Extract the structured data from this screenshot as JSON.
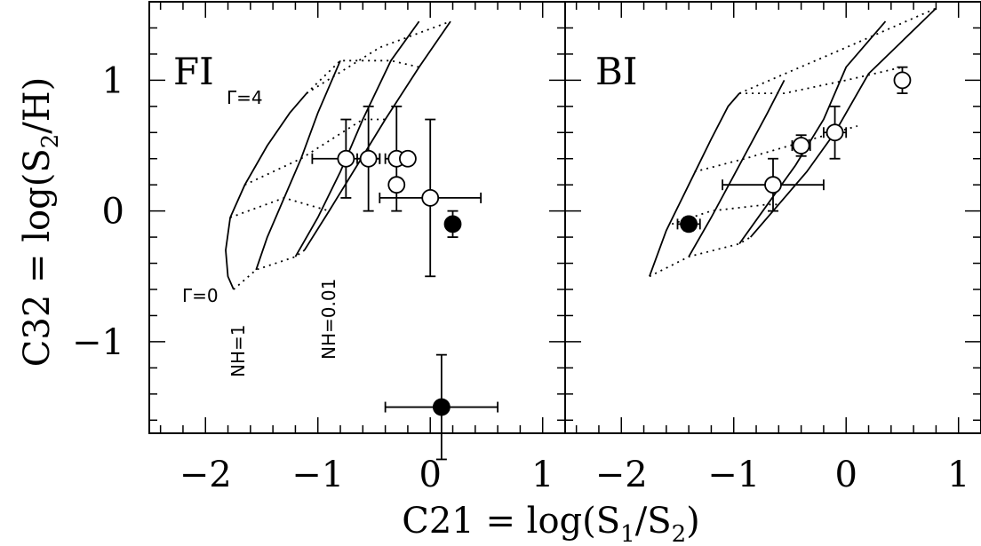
{
  "chart_data": [
    {
      "type": "scatter",
      "panel_label": "FI",
      "xlim": [
        -2.5,
        1.2
      ],
      "ylim": [
        -1.7,
        1.6
      ],
      "x_ticks": [
        -2,
        -1,
        0,
        1
      ],
      "y_ticks": [
        -1,
        0,
        1
      ],
      "xlabel": "C21 = log(S1/S2)",
      "ylabel": "C32 = log(S2/H)",
      "annotations": {
        "gamma_top": "Γ=4",
        "gamma_bottom": "Γ=0",
        "nh_left": "NH=1",
        "nh_right": "NH=0.01"
      },
      "model_grid": {
        "nh_curves": [
          [
            [
              -1.75,
              -0.6
            ],
            [
              -1.8,
              -0.5
            ],
            [
              -1.82,
              -0.3
            ],
            [
              -1.78,
              -0.05
            ],
            [
              -1.65,
              0.2
            ],
            [
              -1.45,
              0.5
            ],
            [
              -1.25,
              0.75
            ],
            [
              -1.1,
              0.9
            ]
          ],
          [
            [
              -1.55,
              -0.45
            ],
            [
              -1.45,
              -0.2
            ],
            [
              -1.3,
              0.1
            ],
            [
              -1.15,
              0.4
            ],
            [
              -1.0,
              0.75
            ],
            [
              -0.8,
              1.15
            ]
          ],
          [
            [
              -1.2,
              -0.35
            ],
            [
              -1.0,
              -0.05
            ],
            [
              -0.8,
              0.3
            ],
            [
              -0.6,
              0.7
            ],
            [
              -0.35,
              1.15
            ],
            [
              -0.1,
              1.45
            ]
          ],
          [
            [
              -1.12,
              -0.3
            ],
            [
              -0.9,
              0.0
            ],
            [
              -0.65,
              0.35
            ],
            [
              -0.4,
              0.7
            ],
            [
              -0.1,
              1.1
            ],
            [
              0.18,
              1.45
            ]
          ]
        ],
        "gamma_curves": [
          [
            [
              -1.75,
              -0.6
            ],
            [
              -1.55,
              -0.45
            ],
            [
              -1.2,
              -0.35
            ],
            [
              -1.12,
              -0.3
            ]
          ],
          [
            [
              -1.78,
              -0.05
            ],
            [
              -1.3,
              0.1
            ],
            [
              -0.9,
              0.0
            ]
          ],
          [
            [
              -1.65,
              0.2
            ],
            [
              -1.15,
              0.4
            ],
            [
              -0.6,
              0.7
            ],
            [
              -0.4,
              0.7
            ]
          ],
          [
            [
              -1.1,
              0.9
            ],
            [
              -0.8,
              1.15
            ],
            [
              -0.35,
              1.15
            ],
            [
              -0.1,
              1.1
            ]
          ],
          [
            [
              -1.1,
              0.9
            ],
            [
              -0.45,
              1.25
            ],
            [
              0.18,
              1.45
            ]
          ]
        ]
      },
      "points": [
        {
          "x": -0.75,
          "y": 0.4,
          "xerr": 0.3,
          "yerr": 0.3,
          "filled": false
        },
        {
          "x": -0.55,
          "y": 0.4,
          "xerr": 0.1,
          "yerr": 0.4,
          "filled": false
        },
        {
          "x": -0.3,
          "y": 0.4,
          "xerr": 0.1,
          "yerr": 0.4,
          "filled": false
        },
        {
          "x": -0.2,
          "y": 0.4,
          "xerr": 0.05,
          "yerr": 0.05,
          "filled": false
        },
        {
          "x": -0.3,
          "y": 0.2,
          "xerr": 0.05,
          "yerr": 0.05,
          "filled": false
        },
        {
          "x": 0.0,
          "y": 0.1,
          "xerr": 0.45,
          "yerr": 0.6,
          "filled": false
        },
        {
          "x": 0.2,
          "y": -0.1,
          "xerr": 0.05,
          "yerr": 0.1,
          "filled": true
        },
        {
          "x": 0.1,
          "y": -1.5,
          "xerr": 0.5,
          "yerr": 0.4,
          "filled": true
        }
      ]
    },
    {
      "type": "scatter",
      "panel_label": "BI",
      "xlim": [
        -2.5,
        1.2
      ],
      "ylim": [
        -1.7,
        1.6
      ],
      "x_ticks": [
        -2,
        -1,
        0,
        1
      ],
      "y_ticks": [],
      "xlabel": "C21 = log(S1/S2)",
      "ylabel": "",
      "annotations": {},
      "model_grid": {
        "nh_curves": [
          [
            [
              -1.75,
              -0.5
            ],
            [
              -1.6,
              -0.15
            ],
            [
              -1.4,
              0.2
            ],
            [
              -1.2,
              0.55
            ],
            [
              -1.05,
              0.8
            ],
            [
              -0.95,
              0.9
            ]
          ],
          [
            [
              -1.4,
              -0.35
            ],
            [
              -1.2,
              -0.05
            ],
            [
              -0.95,
              0.35
            ],
            [
              -0.7,
              0.75
            ],
            [
              -0.55,
              1.0
            ]
          ],
          [
            [
              -0.95,
              -0.25
            ],
            [
              -0.7,
              0.05
            ],
            [
              -0.45,
              0.35
            ],
            [
              -0.2,
              0.7
            ],
            [
              0.0,
              1.1
            ],
            [
              0.35,
              1.45
            ]
          ],
          [
            [
              -0.85,
              -0.2
            ],
            [
              -0.6,
              0.05
            ],
            [
              -0.35,
              0.3
            ],
            [
              -0.1,
              0.6
            ],
            [
              0.2,
              1.05
            ],
            [
              0.8,
              1.55
            ]
          ]
        ],
        "gamma_curves": [
          [
            [
              -1.75,
              -0.5
            ],
            [
              -1.4,
              -0.35
            ],
            [
              -0.95,
              -0.25
            ],
            [
              -0.85,
              -0.2
            ]
          ],
          [
            [
              -1.55,
              -0.1
            ],
            [
              -1.2,
              0.0
            ],
            [
              -0.7,
              0.05
            ],
            [
              -0.6,
              0.05
            ]
          ],
          [
            [
              -1.35,
              0.3
            ],
            [
              -0.9,
              0.4
            ],
            [
              -0.3,
              0.55
            ],
            [
              0.1,
              0.65
            ]
          ],
          [
            [
              -0.95,
              0.9
            ],
            [
              -0.55,
              0.9
            ],
            [
              0.0,
              1.0
            ],
            [
              0.5,
              1.1
            ]
          ],
          [
            [
              -0.95,
              0.9
            ],
            [
              0.0,
              1.25
            ],
            [
              0.8,
              1.55
            ]
          ]
        ]
      },
      "points": [
        {
          "x": -1.4,
          "y": -0.1,
          "xerr": 0.1,
          "yerr": 0.05,
          "filled": true
        },
        {
          "x": -0.65,
          "y": 0.2,
          "xerr": 0.45,
          "yerr": 0.2,
          "filled": false
        },
        {
          "x": -0.4,
          "y": 0.5,
          "xerr": 0.08,
          "yerr": 0.08,
          "filled": false
        },
        {
          "x": -0.1,
          "y": 0.6,
          "xerr": 0.1,
          "yerr": 0.2,
          "filled": false
        },
        {
          "x": 0.5,
          "y": 1.0,
          "xerr": 0.0,
          "yerr": 0.1,
          "filled": false
        }
      ]
    }
  ]
}
